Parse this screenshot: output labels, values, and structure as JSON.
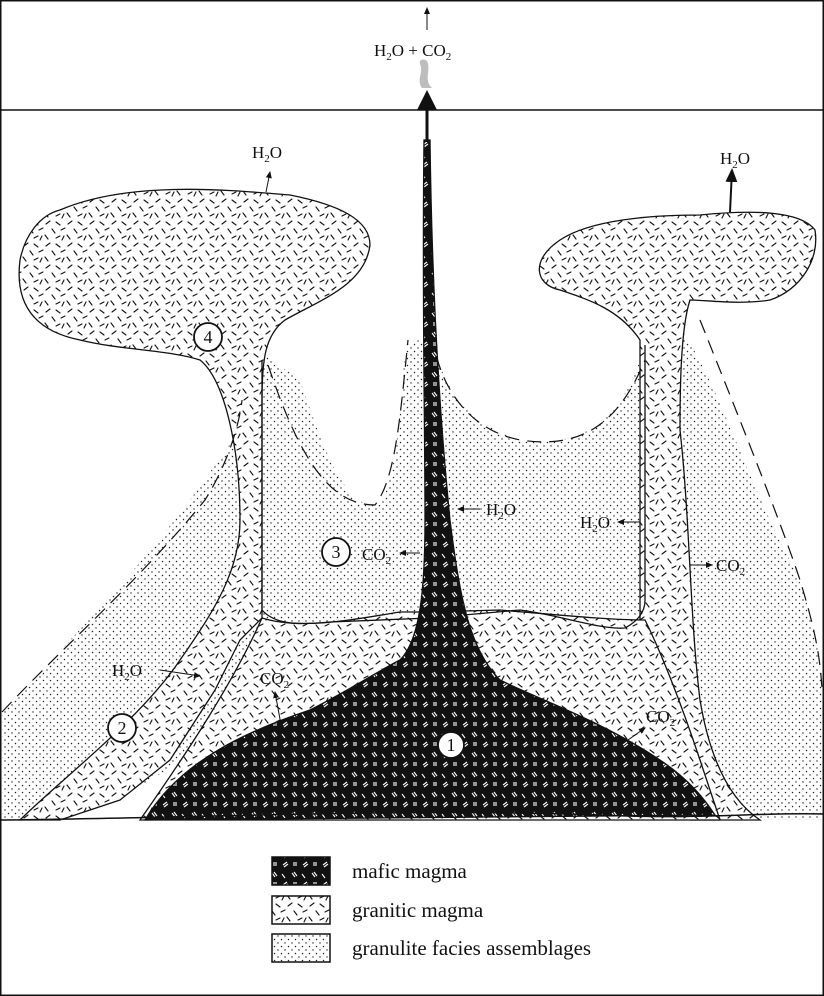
{
  "vent": {
    "label_main": "H",
    "label_sub1": "2",
    "label_mid": "O + CO",
    "label_sub2": "2"
  },
  "gas_labels": [
    {
      "id": "h2o-top-left",
      "main": "H",
      "sub": "2",
      "rest": "O"
    },
    {
      "id": "h2o-top-right",
      "main": "H",
      "sub": "2",
      "rest": "O"
    },
    {
      "id": "h2o-center",
      "main": "H",
      "sub": "2",
      "rest": "O"
    },
    {
      "id": "h2o-right-mid",
      "main": "H",
      "sub": "2",
      "rest": "O"
    },
    {
      "id": "co2-zone3",
      "main": "CO",
      "sub": "2",
      "rest": ""
    },
    {
      "id": "co2-right",
      "main": "CO",
      "sub": "2",
      "rest": ""
    },
    {
      "id": "h2o-left-low",
      "main": "H",
      "sub": "2",
      "rest": "O"
    },
    {
      "id": "co2-left-low",
      "main": "CO",
      "sub": "2",
      "rest": ""
    },
    {
      "id": "co2-right-low",
      "main": "CO",
      "sub": "2",
      "rest": ""
    }
  ],
  "zones": [
    "1",
    "2",
    "3",
    "4"
  ],
  "legend": [
    {
      "label": "mafic magma",
      "pattern": "mafic"
    },
    {
      "label": "granitic magma",
      "pattern": "granitic"
    },
    {
      "label": "granulite facies assemblages",
      "pattern": "granulite"
    }
  ],
  "colors": {
    "mafic": "#111111",
    "line": "#111111",
    "plume": "#bdbdbd",
    "background": "#ffffff"
  }
}
